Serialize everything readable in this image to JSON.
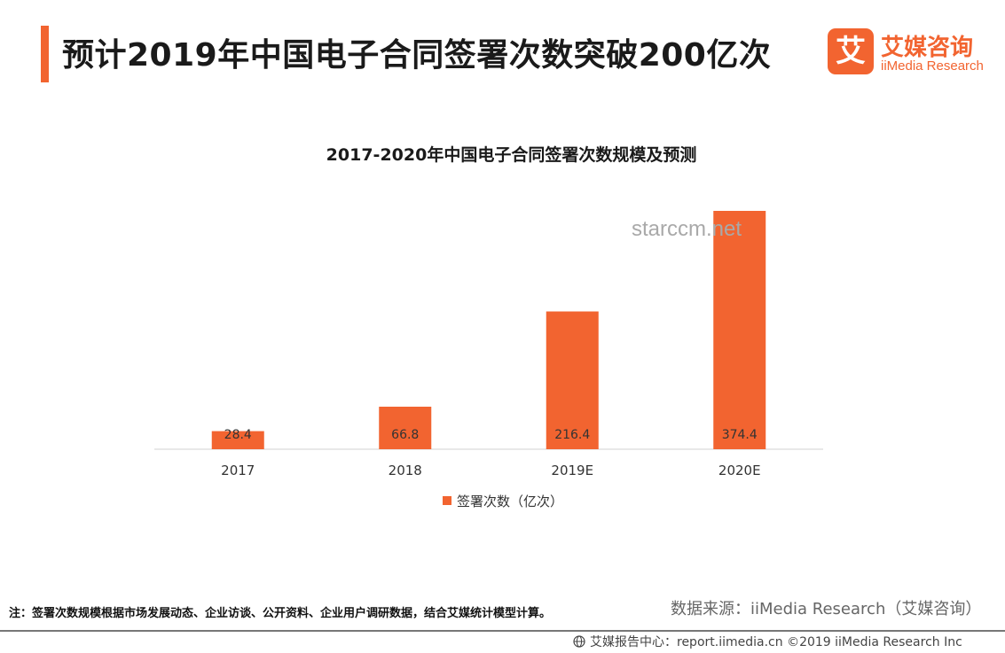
{
  "header": {
    "title": "预计2019年中国电子合同签署次数突破200亿次"
  },
  "logo": {
    "mark_char": "艾",
    "name_cn": "艾媒咨询",
    "name_en": "iiMedia Research"
  },
  "watermark": "starccm.net",
  "chart_data": {
    "type": "bar",
    "title": "2017-2020年中国电子合同签署次数规模及预测",
    "categories": [
      "2017",
      "2018",
      "2019E",
      "2020E"
    ],
    "series": [
      {
        "name": "签署次数（亿次）",
        "values": [
          28.4,
          66.8,
          216.4,
          374.4
        ]
      }
    ],
    "value_labels": [
      "28.4",
      "66.8",
      "216.4",
      "374.4"
    ],
    "ylim": [
      0,
      400
    ],
    "grid": false,
    "legend": "bottom",
    "color": "#f26430"
  },
  "notes": {
    "note": "注：签署次数规模根据市场发展动态、企业访谈、公开资料、企业用户调研数据，结合艾媒统计模型计算。",
    "source": "数据来源：iiMedia Research（艾媒咨询）",
    "footer": "艾媒报告中心：report.iimedia.cn  ©2019  iiMedia Research  Inc"
  },
  "icons": {
    "footer_icon": "globe-icon",
    "legend_icon": "square-swatch-icon"
  }
}
